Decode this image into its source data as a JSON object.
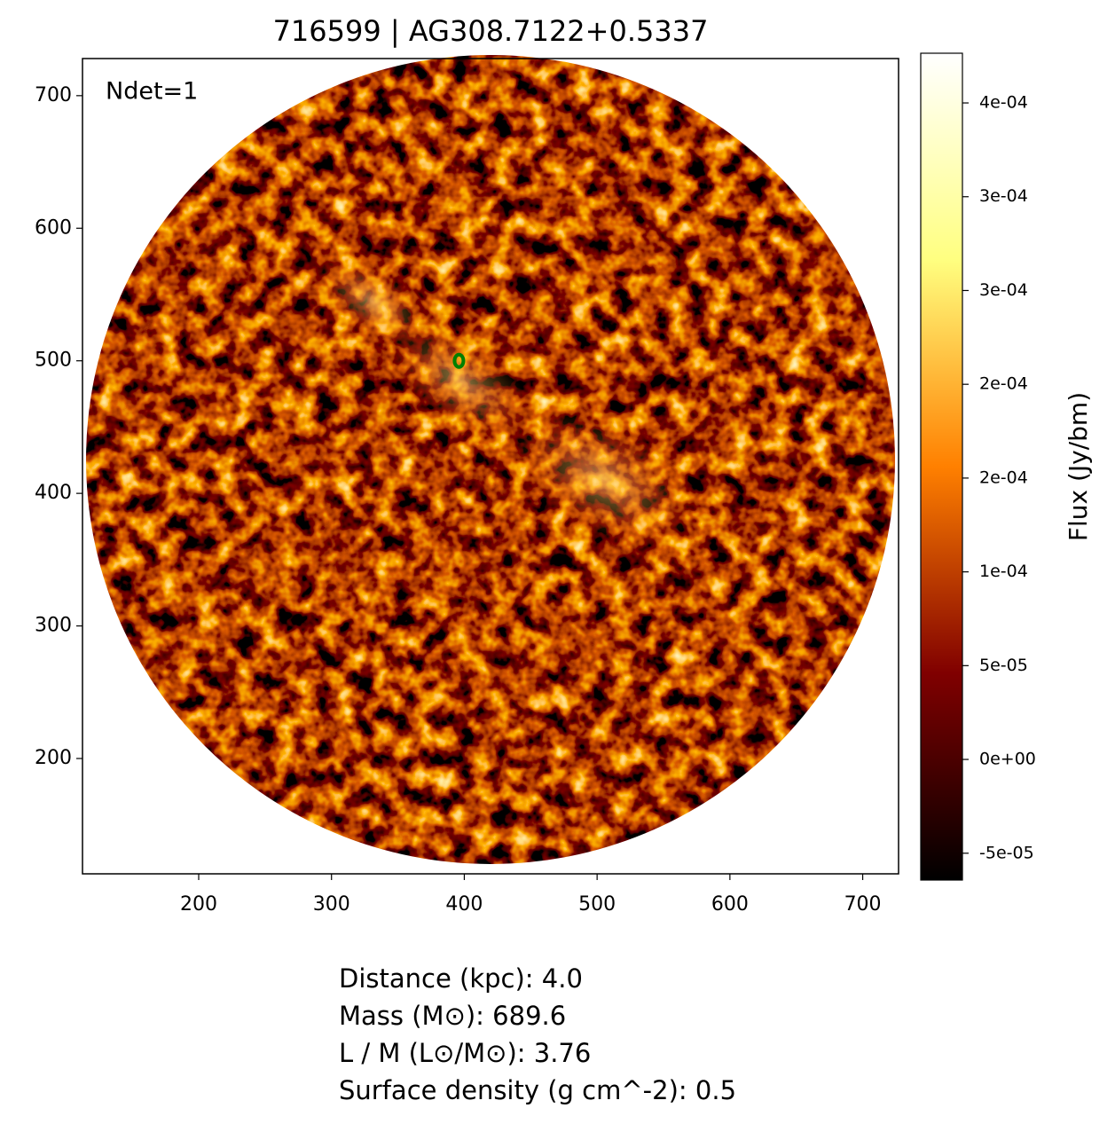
{
  "chart_data": {
    "type": "image",
    "title": "716599 | AG308.7122+0.5337",
    "annotation": "Ndet=1",
    "xlim": [
      112.5,
      727
    ],
    "ylim": [
      113,
      728
    ],
    "xticks": [
      200,
      300,
      400,
      500,
      600,
      700
    ],
    "yticks": [
      200,
      300,
      400,
      500,
      600,
      700
    ],
    "sources": [
      {
        "x": 396,
        "y": 500,
        "color": "#008000"
      }
    ],
    "colorbar": {
      "label": "Flux (Jy/bm)",
      "clim": [
        -6.43e-05,
        0.0003765
      ],
      "colormap_colors": [
        "#000000",
        "#800000",
        "#ff8000",
        "#ffff80",
        "#ffffff"
      ],
      "ticks": [
        {
          "value": -5e-05,
          "label": "-5e-05"
        },
        {
          "value": 0,
          "label": "0e+00"
        },
        {
          "value": 5e-05,
          "label": "5e-05"
        },
        {
          "value": 0.0001,
          "label": "1e-04"
        },
        {
          "value": 0.00015,
          "label": "2e-04"
        },
        {
          "value": 0.0002,
          "label": "2e-04"
        },
        {
          "value": 0.00025,
          "label": "3e-04"
        },
        {
          "value": 0.0003,
          "label": "3e-04"
        },
        {
          "value": 0.00035,
          "label": "4e-04"
        }
      ]
    },
    "info": [
      "Distance (kpc): 4.0",
      "Mass (M⊙): 689.6",
      "L / M (L⊙/M⊙): 3.76",
      "Surface density (g cm^-2): 0.5"
    ]
  }
}
